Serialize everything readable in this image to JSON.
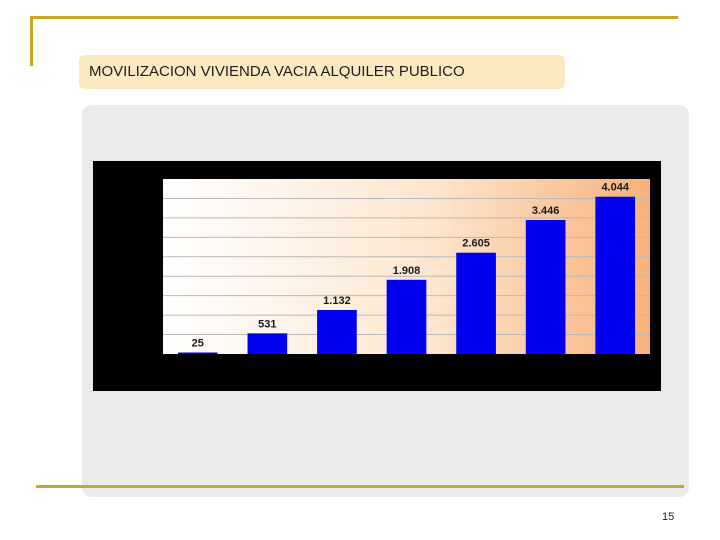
{
  "slide": {
    "title": "MOVILIZACION VIVIENDA VACIA ALQUILER PUBLICO",
    "page_number": "15"
  },
  "colors": {
    "accent_rule": "#c8a82a",
    "title_fill": "#fbe9c2",
    "panel_fill": "#ebebeb",
    "bar_fill": "#0000ee",
    "chart_frame": "#000000"
  },
  "chart_data": {
    "type": "bar",
    "categories": [
      "",
      "",
      "",
      "",
      "",
      "",
      ""
    ],
    "values": [
      25,
      531,
      1132,
      1908,
      2605,
      3446,
      4044
    ],
    "data_labels": [
      "25",
      "531",
      "1.132",
      "1.908",
      "2.605",
      "3.446",
      "4.044"
    ],
    "title": "",
    "xlabel": "",
    "ylabel": "",
    "ylim": [
      0,
      4500
    ],
    "grid": true,
    "legend": "none"
  }
}
